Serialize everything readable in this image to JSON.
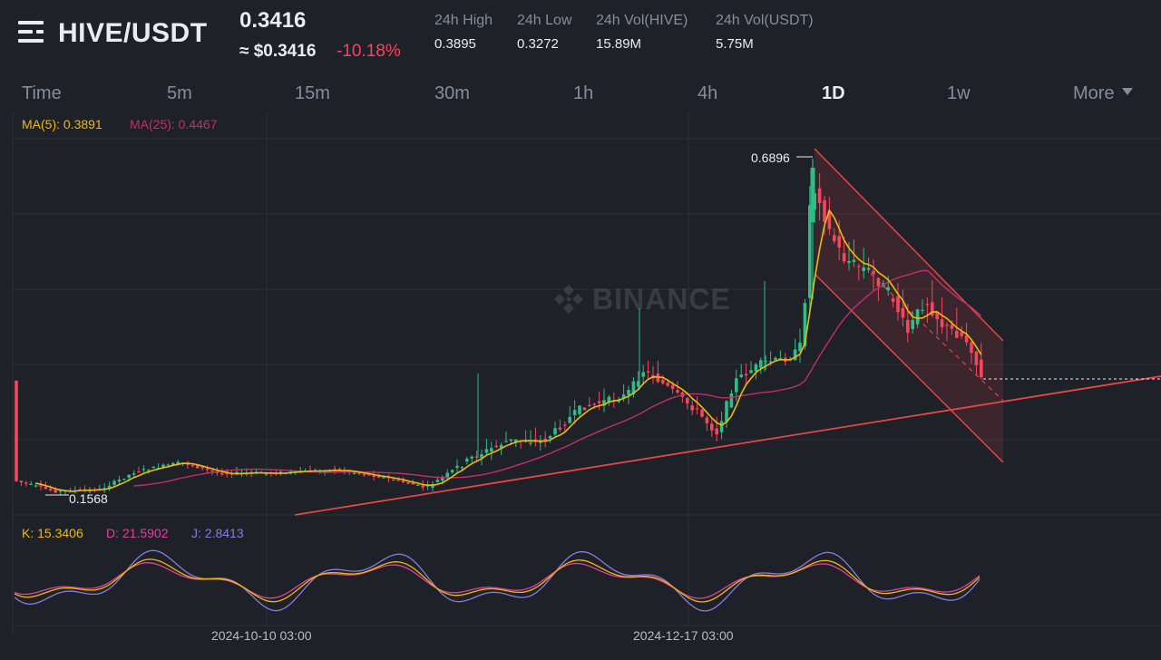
{
  "header": {
    "pair": "HIVE/USDT",
    "price": "0.3416",
    "price_usd": "≈ $0.3416",
    "change_pct": "-10.18%",
    "stats": [
      {
        "label": "24h High",
        "value": "0.3895"
      },
      {
        "label": "24h Low",
        "value": "0.3272"
      },
      {
        "label": "24h Vol(HIVE)",
        "value": "15.89M"
      },
      {
        "label": "24h Vol(USDT)",
        "value": "5.75M"
      }
    ]
  },
  "tabs": [
    {
      "label": "Time",
      "active": false
    },
    {
      "label": "5m",
      "active": false
    },
    {
      "label": "15m",
      "active": false
    },
    {
      "label": "30m",
      "active": false
    },
    {
      "label": "1h",
      "active": false
    },
    {
      "label": "4h",
      "active": false
    },
    {
      "label": "1D",
      "active": true
    },
    {
      "label": "1w",
      "active": false
    },
    {
      "label": "More",
      "active": false
    }
  ],
  "indicators": {
    "ma5": "MA(5): 0.3891",
    "ma25": "MA(25): 0.4467",
    "k": "K: 15.3406",
    "d": "D: 21.5902",
    "j": "J: 2.8413"
  },
  "annotations": {
    "high": "0.6896",
    "low": "0.1568"
  },
  "watermark": "BINANCE",
  "x_axis_dates": [
    "2024-10-10 03:00",
    "2024-12-17 03:00"
  ],
  "colors": {
    "background": "#1e2128",
    "up": "#2ebd85",
    "down": "#f6465d",
    "ma5": "#f0b90b",
    "ma25": "#c0306a",
    "k": "#f0b90b",
    "d": "#e040a0",
    "j": "#8a7be0",
    "trendline": "#e84545"
  },
  "chart_data": {
    "type": "candlestick",
    "title": "HIVE/USDT",
    "interval": "1D",
    "grid": true,
    "high": 0.6896,
    "low": 0.1568,
    "last": 0.3416,
    "ma5_last": 0.3891,
    "ma25_last": 0.4467,
    "kdj_last": {
      "K": 15.3406,
      "D": 21.5902,
      "J": 2.8413
    },
    "x_ticks": [
      "2024-10-10 03:00",
      "2024-12-17 03:00"
    ]
  }
}
